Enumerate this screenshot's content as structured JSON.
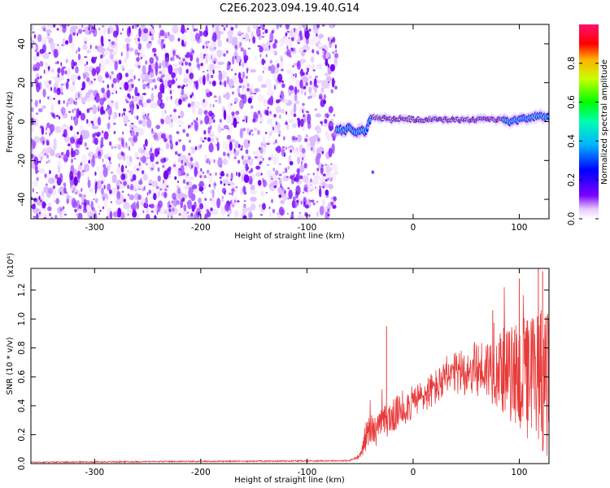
{
  "figure_title": "C2E6.2023.094.19.40.G14",
  "colors": {
    "snr_line": "#e83a3a",
    "speckle": "#7a00ff",
    "frame": "#000000"
  },
  "chart_data": [
    {
      "type": "heatmap",
      "xlabel": "Height of straight line (km)",
      "ylabel": "Frequency (Hz)",
      "xlim": [
        -360,
        128
      ],
      "ylim": [
        -50,
        50
      ],
      "xticks": [
        -300,
        -200,
        -100,
        0,
        100
      ],
      "yticks": [
        -40,
        -20,
        0,
        20,
        40
      ],
      "noise_region_x": [
        -360,
        -72
      ],
      "signal_track": {
        "x": [
          -70,
          -65,
          -60,
          -55,
          -50,
          -45,
          -40,
          -30,
          -20,
          -10,
          0,
          10,
          20,
          30,
          40,
          50,
          60,
          70,
          80,
          90,
          100,
          110,
          120,
          128
        ],
        "freq_hz": [
          -4,
          -5,
          -3,
          -6,
          -4,
          -5,
          2,
          2,
          1,
          2,
          1,
          1,
          1,
          1,
          1,
          1,
          1,
          1,
          1,
          0,
          1,
          2,
          3,
          2
        ]
      },
      "colorbar": {
        "label": "Normalized spectral amplitude",
        "range": [
          0,
          1
        ],
        "ticks": [
          "0.0",
          "0.2",
          "0.4",
          "0.6",
          "0.8"
        ],
        "tick_values": [
          0,
          0.2,
          0.4,
          0.6,
          0.8
        ]
      }
    },
    {
      "type": "line",
      "xlabel": "Height of straight line (km)",
      "ylabel": "SNR (10 * v/v)",
      "y_scale_label": "(x10⁴)",
      "xlim": [
        -360,
        128
      ],
      "ylim": [
        0,
        1.35
      ],
      "xticks": [
        -300,
        -200,
        -100,
        0,
        100
      ],
      "yticks": [
        "0.0",
        "0.2",
        "0.4",
        "0.6",
        "0.8",
        "1.0",
        "1.2"
      ],
      "ytick_values": [
        0,
        0.2,
        0.4,
        0.6,
        0.8,
        1.0,
        1.2
      ],
      "envelope": {
        "x": [
          -360,
          -60,
          -50,
          -45,
          -40,
          -35,
          -30,
          -25,
          -20,
          -10,
          0,
          10,
          20,
          30,
          40,
          50,
          60,
          70,
          80,
          90,
          100,
          110,
          120,
          128
        ],
        "y": [
          0.01,
          0.02,
          0.05,
          0.18,
          0.25,
          0.22,
          0.28,
          0.3,
          0.32,
          0.38,
          0.42,
          0.47,
          0.52,
          0.57,
          0.62,
          0.64,
          0.65,
          0.66,
          0.66,
          0.62,
          0.6,
          0.58,
          0.62,
          0.55
        ],
        "spread": [
          0.004,
          0.005,
          0.02,
          0.1,
          0.12,
          0.1,
          0.1,
          0.12,
          0.12,
          0.12,
          0.12,
          0.12,
          0.13,
          0.13,
          0.15,
          0.17,
          0.2,
          0.22,
          0.28,
          0.32,
          0.4,
          0.45,
          0.55,
          0.5
        ]
      },
      "spikes": [
        {
          "x": -25,
          "y": 0.95
        },
        {
          "x": 100,
          "y": 1.28
        },
        {
          "x": 118,
          "y": 1.35
        },
        {
          "x": 122,
          "y": 1.33
        },
        {
          "x": 75,
          "y": 1.06
        }
      ]
    }
  ]
}
